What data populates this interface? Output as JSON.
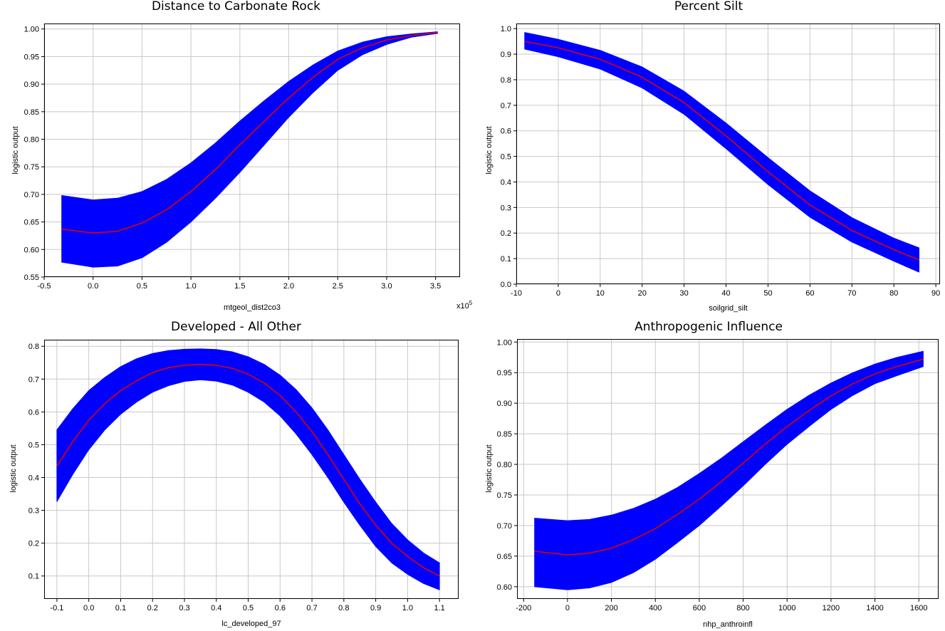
{
  "chart_data": [
    {
      "type": "area",
      "title": "Distance to Carbonate Rock",
      "xlabel": "mtgeol_dist2co3",
      "ylabel": "logistic output",
      "x_multiplier_label": "x10",
      "x_multiplier_exp": "5",
      "xlim": [
        -0.5,
        3.75
      ],
      "ylim": [
        0.55,
        1.01
      ],
      "xticks": [
        -0.5,
        0.0,
        0.5,
        1.0,
        1.5,
        2.0,
        2.5,
        3.0,
        3.5
      ],
      "xtick_labels": [
        "-0.5",
        "0.0",
        "0.5",
        "1.0",
        "1.5",
        "2.0",
        "2.5",
        "3.0",
        "3.5"
      ],
      "yticks": [
        0.55,
        0.6,
        0.65,
        0.7,
        0.75,
        0.8,
        0.85,
        0.9,
        0.95,
        1.0
      ],
      "ytick_labels": [
        "0.55",
        "0.60",
        "0.65",
        "0.70",
        "0.75",
        "0.80",
        "0.85",
        "0.90",
        "0.95",
        "1.00"
      ],
      "grid": true,
      "band_color": "#0000ff",
      "line_color": "#e00000",
      "x": [
        -0.32,
        0.0,
        0.25,
        0.5,
        0.75,
        1.0,
        1.25,
        1.5,
        1.75,
        2.0,
        2.25,
        2.5,
        2.75,
        3.0,
        3.25,
        3.52
      ],
      "mean": [
        0.637,
        0.63,
        0.633,
        0.648,
        0.672,
        0.705,
        0.745,
        0.79,
        0.833,
        0.875,
        0.913,
        0.945,
        0.966,
        0.98,
        0.988,
        0.994
      ],
      "upper": [
        0.698,
        0.69,
        0.693,
        0.705,
        0.727,
        0.757,
        0.793,
        0.833,
        0.87,
        0.905,
        0.935,
        0.96,
        0.976,
        0.986,
        0.991,
        0.995
      ],
      "lower": [
        0.577,
        0.568,
        0.57,
        0.585,
        0.613,
        0.65,
        0.693,
        0.74,
        0.79,
        0.84,
        0.885,
        0.925,
        0.953,
        0.972,
        0.985,
        0.992
      ]
    },
    {
      "type": "area",
      "title": "Percent Silt",
      "xlabel": "soilgrid_silt",
      "ylabel": "logistic output",
      "xlim": [
        -10,
        91
      ],
      "ylim": [
        0.0,
        1.02
      ],
      "xticks": [
        -10,
        0,
        10,
        20,
        30,
        40,
        50,
        60,
        70,
        80,
        90
      ],
      "xtick_labels": [
        "-10",
        "0",
        "10",
        "20",
        "30",
        "40",
        "50",
        "60",
        "70",
        "80",
        "90"
      ],
      "yticks": [
        0.0,
        0.1,
        0.2,
        0.3,
        0.4,
        0.5,
        0.6,
        0.7,
        0.8,
        0.9,
        1.0
      ],
      "ytick_labels": [
        "0.0",
        "0.1",
        "0.2",
        "0.3",
        "0.4",
        "0.5",
        "0.6",
        "0.7",
        "0.8",
        "0.9",
        "1.0"
      ],
      "grid": true,
      "band_color": "#0000ff",
      "line_color": "#e00000",
      "x": [
        -8,
        0,
        10,
        20,
        30,
        40,
        50,
        60,
        70,
        80,
        86
      ],
      "mean": [
        0.95,
        0.925,
        0.88,
        0.81,
        0.71,
        0.58,
        0.44,
        0.31,
        0.21,
        0.135,
        0.095
      ],
      "upper": [
        0.985,
        0.958,
        0.915,
        0.85,
        0.755,
        0.63,
        0.495,
        0.365,
        0.26,
        0.18,
        0.142
      ],
      "lower": [
        0.92,
        0.89,
        0.842,
        0.768,
        0.665,
        0.53,
        0.39,
        0.262,
        0.165,
        0.09,
        0.047
      ]
    },
    {
      "type": "area",
      "title": "Developed - All Other",
      "xlabel": "lc_developed_97",
      "ylabel": "logistic output",
      "xlim": [
        -0.14,
        1.16
      ],
      "ylim": [
        0.03,
        0.82
      ],
      "xticks": [
        -0.1,
        0.0,
        0.1,
        0.2,
        0.3,
        0.4,
        0.5,
        0.6,
        0.7,
        0.8,
        0.9,
        1.0,
        1.1
      ],
      "xtick_labels": [
        "-0.1",
        "0.0",
        "0.1",
        "0.2",
        "0.3",
        "0.4",
        "0.5",
        "0.6",
        "0.7",
        "0.8",
        "0.9",
        "1.0",
        "1.1"
      ],
      "yticks": [
        0.1,
        0.2,
        0.3,
        0.4,
        0.5,
        0.6,
        0.7,
        0.8
      ],
      "ytick_labels": [
        "0.1",
        "0.2",
        "0.3",
        "0.4",
        "0.5",
        "0.6",
        "0.7",
        "0.8"
      ],
      "grid": true,
      "band_color": "#0000ff",
      "line_color": "#e00000",
      "x": [
        -0.1,
        -0.05,
        0.0,
        0.05,
        0.1,
        0.15,
        0.2,
        0.25,
        0.3,
        0.35,
        0.4,
        0.45,
        0.5,
        0.55,
        0.6,
        0.65,
        0.7,
        0.75,
        0.8,
        0.85,
        0.9,
        0.95,
        1.0,
        1.05,
        1.1
      ],
      "mean": [
        0.435,
        0.51,
        0.575,
        0.625,
        0.665,
        0.695,
        0.72,
        0.735,
        0.742,
        0.745,
        0.742,
        0.733,
        0.715,
        0.688,
        0.65,
        0.6,
        0.54,
        0.47,
        0.395,
        0.32,
        0.255,
        0.2,
        0.16,
        0.125,
        0.1
      ],
      "upper": [
        0.545,
        0.61,
        0.665,
        0.705,
        0.738,
        0.762,
        0.778,
        0.787,
        0.791,
        0.792,
        0.79,
        0.783,
        0.768,
        0.745,
        0.712,
        0.668,
        0.612,
        0.545,
        0.47,
        0.395,
        0.325,
        0.26,
        0.21,
        0.17,
        0.14
      ],
      "lower": [
        0.327,
        0.41,
        0.485,
        0.545,
        0.593,
        0.63,
        0.66,
        0.68,
        0.693,
        0.698,
        0.694,
        0.682,
        0.66,
        0.63,
        0.588,
        0.533,
        0.47,
        0.4,
        0.325,
        0.255,
        0.19,
        0.14,
        0.105,
        0.077,
        0.058
      ]
    },
    {
      "type": "area",
      "title": "Anthropogenic Influence",
      "xlabel": "nhp_anthroinfl",
      "ylabel": "logistic output",
      "xlim": [
        -230,
        1690
      ],
      "ylim": [
        0.58,
        1.005
      ],
      "xticks": [
        -200,
        0,
        200,
        400,
        600,
        800,
        1000,
        1200,
        1400,
        1600
      ],
      "xtick_labels": [
        "-200",
        "0",
        "200",
        "400",
        "600",
        "800",
        "1000",
        "1200",
        "1400",
        "1600"
      ],
      "yticks": [
        0.6,
        0.65,
        0.7,
        0.75,
        0.8,
        0.85,
        0.9,
        0.95,
        1.0
      ],
      "ytick_labels": [
        "0.60",
        "0.65",
        "0.70",
        "0.75",
        "0.80",
        "0.85",
        "0.90",
        "0.95",
        "1.00"
      ],
      "grid": true,
      "band_color": "#0000ff",
      "line_color": "#e00000",
      "x": [
        -150,
        0,
        100,
        200,
        300,
        400,
        500,
        600,
        700,
        800,
        900,
        1000,
        1100,
        1200,
        1300,
        1400,
        1500,
        1620
      ],
      "mean": [
        0.658,
        0.652,
        0.655,
        0.663,
        0.677,
        0.695,
        0.718,
        0.743,
        0.772,
        0.802,
        0.833,
        0.862,
        0.888,
        0.912,
        0.932,
        0.948,
        0.96,
        0.972
      ],
      "upper": [
        0.712,
        0.708,
        0.71,
        0.717,
        0.728,
        0.743,
        0.762,
        0.785,
        0.81,
        0.837,
        0.864,
        0.89,
        0.913,
        0.933,
        0.95,
        0.964,
        0.975,
        0.985
      ],
      "lower": [
        0.6,
        0.595,
        0.598,
        0.607,
        0.623,
        0.645,
        0.672,
        0.7,
        0.732,
        0.765,
        0.8,
        0.833,
        0.862,
        0.89,
        0.913,
        0.932,
        0.945,
        0.96
      ]
    }
  ]
}
